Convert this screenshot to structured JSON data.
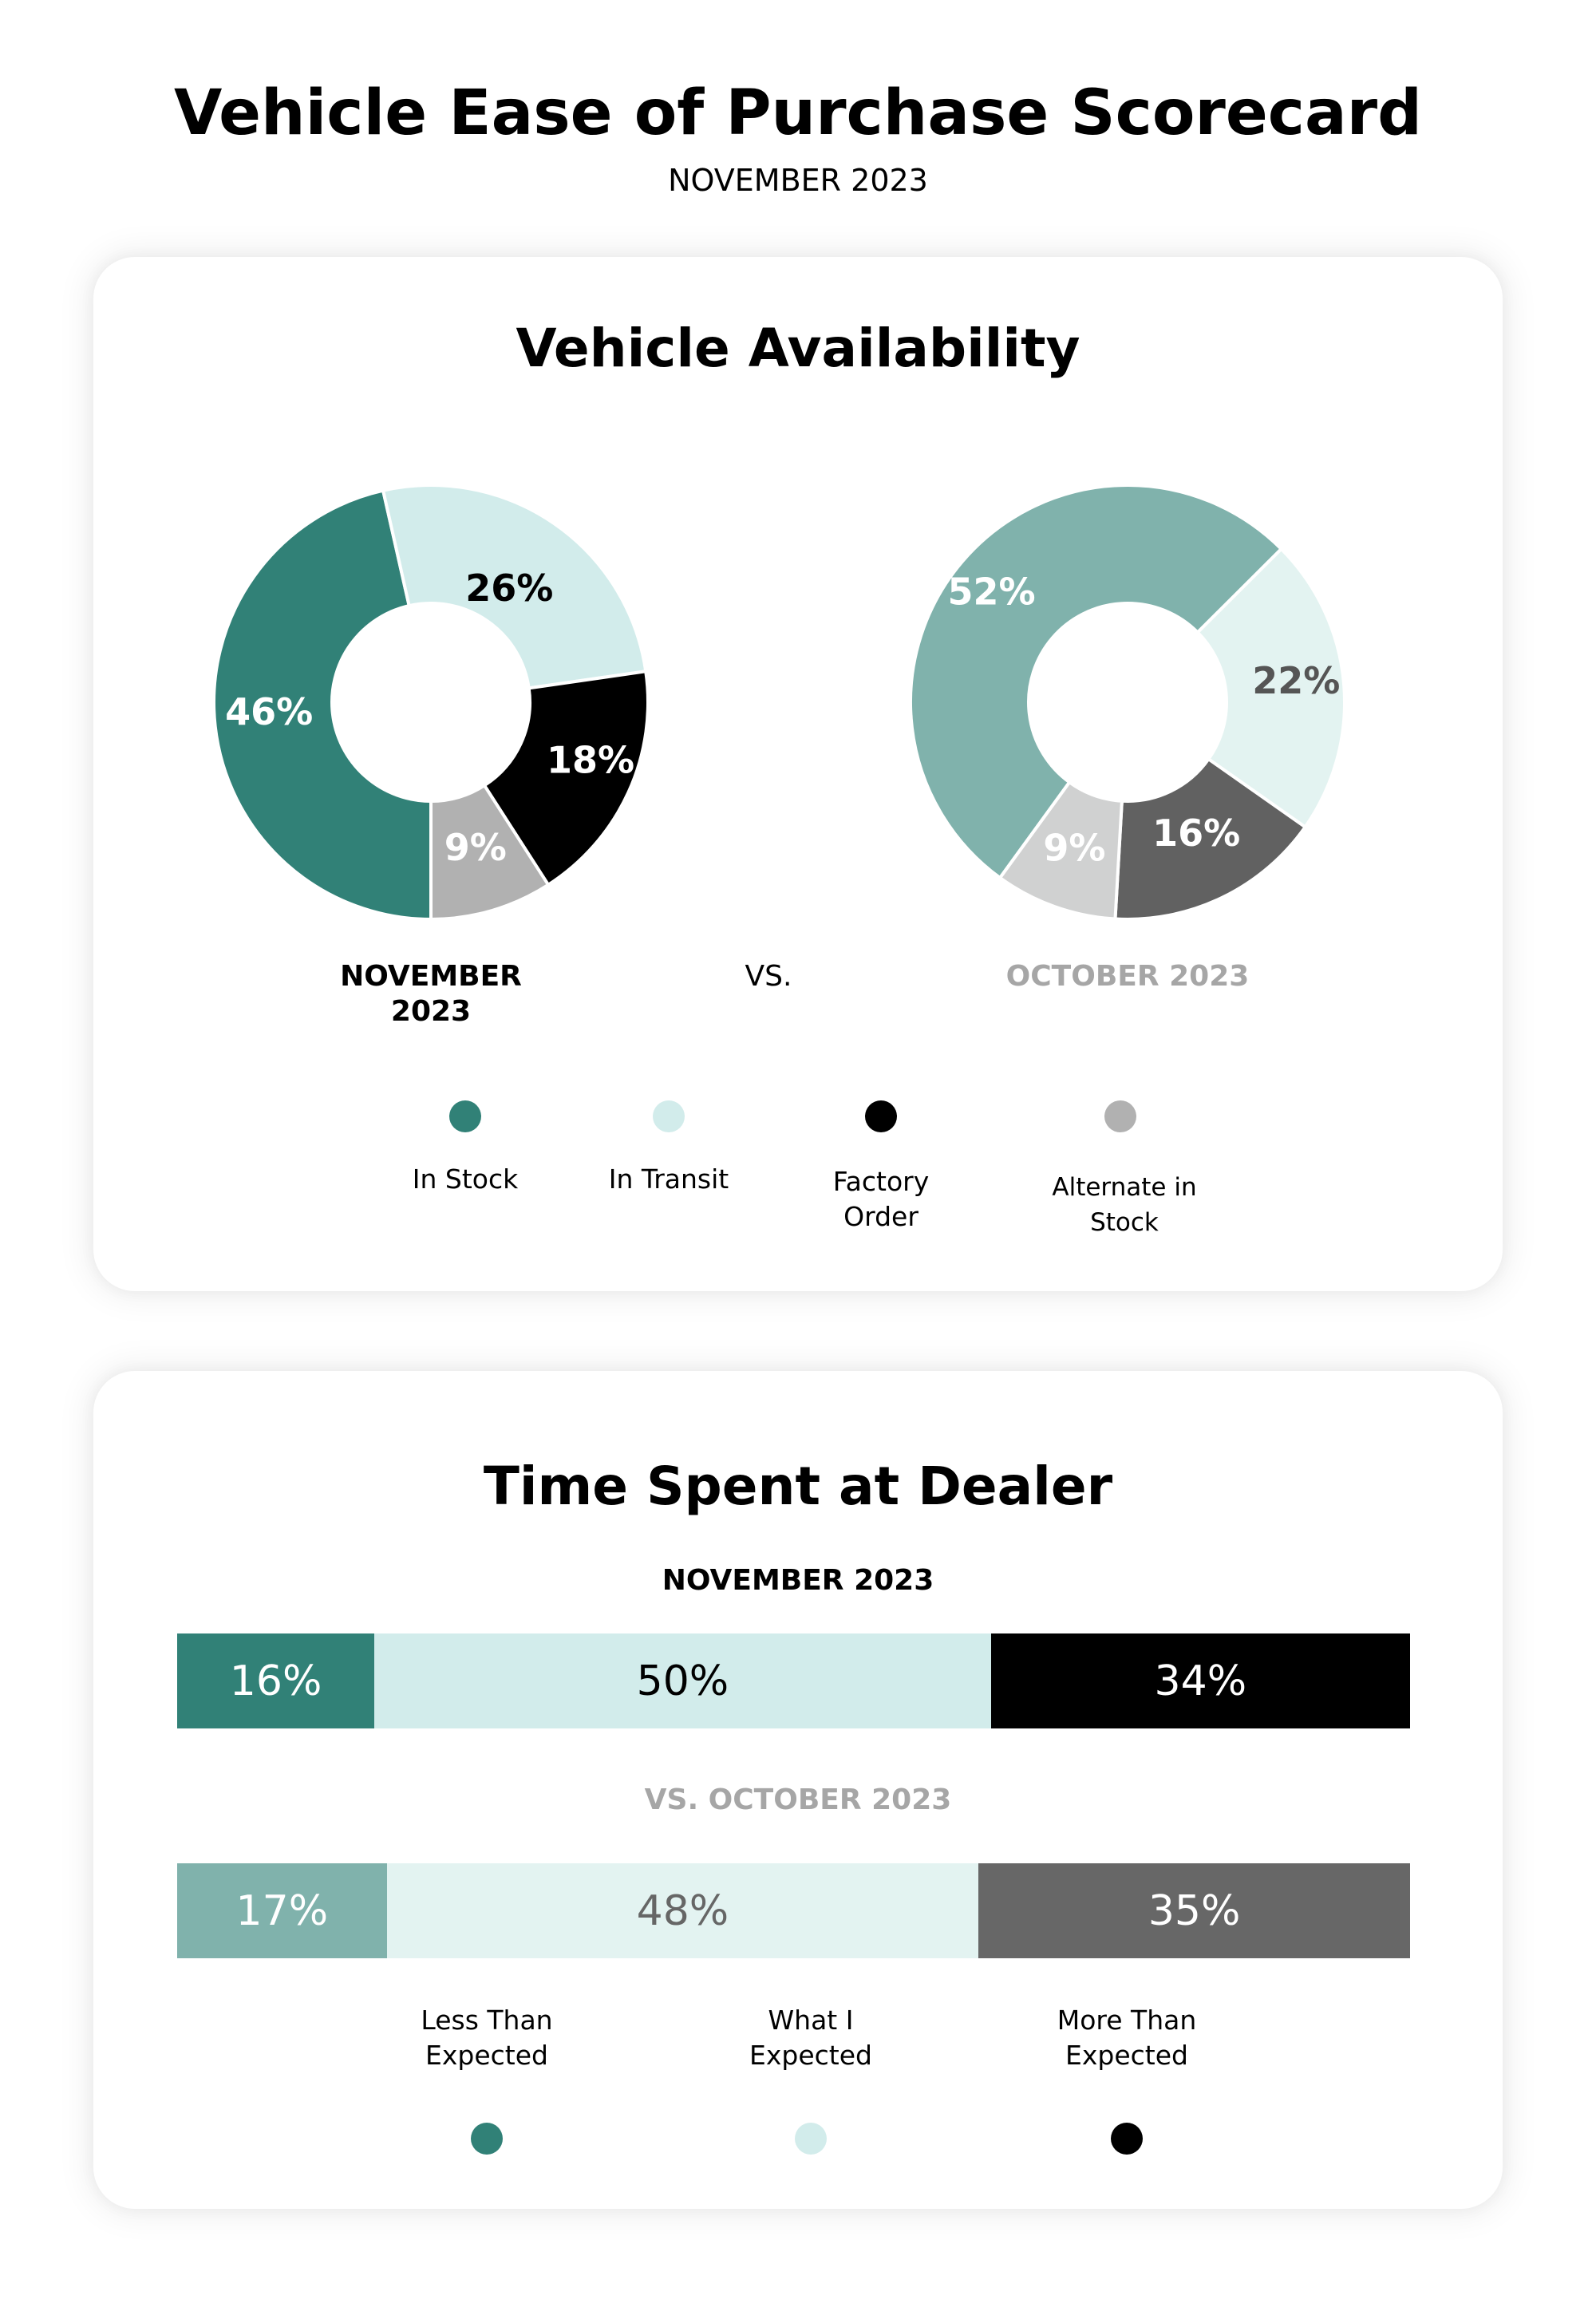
{
  "header": {
    "title": "Vehicle Ease of Purchase Scorecard",
    "subtitle": "NOVEMBER 2023"
  },
  "availability": {
    "title": "Vehicle Availability",
    "current_label": "NOVEMBER 2023",
    "vs_label": "VS.",
    "previous_label": "OCTOBER 2023",
    "legend": [
      {
        "label_line1": "In Stock",
        "label_line2": "",
        "color": "#318177"
      },
      {
        "label_line1": "In Transit",
        "label_line2": "",
        "color": "#D2ECEB"
      },
      {
        "label_line1": "Factory",
        "label_line2": "Order",
        "color": "#000000"
      },
      {
        "label_line1": "Alternate in",
        "label_line2": "Stock",
        "color": "#B1B1B1"
      }
    ]
  },
  "time_at_dealer": {
    "title": "Time Spent at Dealer",
    "current_label": "NOVEMBER 2023",
    "previous_label": "VS. OCTOBER 2023",
    "legend": [
      {
        "label_line1": "Less Than",
        "label_line2": "Expected",
        "color": "#318177"
      },
      {
        "label_line1": "What I",
        "label_line2": "Expected",
        "color": "#D2ECEB"
      },
      {
        "label_line1": "More Than",
        "label_line2": "Expected",
        "color": "#000000"
      }
    ]
  },
  "chart_data": [
    {
      "type": "pie",
      "title": "Vehicle Availability — NOVEMBER 2023",
      "donut": true,
      "categories": [
        "In Stock",
        "In Transit",
        "Factory Order",
        "Alternate in Stock"
      ],
      "values": [
        46,
        26,
        18,
        9
      ],
      "labels": [
        "46%",
        "26%",
        "18%",
        "9%"
      ],
      "colors": [
        "#318177",
        "#D2ECEB",
        "#000000",
        "#B1B1B1"
      ],
      "label_colors": [
        "#FFFFFF",
        "#000000",
        "#FFFFFF",
        "#FFFFFF"
      ],
      "start_angle_deg": 180
    },
    {
      "type": "pie",
      "title": "Vehicle Availability — OCTOBER 2023",
      "donut": true,
      "categories": [
        "In Stock",
        "In Transit",
        "Factory Order",
        "Alternate in Stock"
      ],
      "values": [
        52,
        22,
        16,
        9
      ],
      "labels": [
        "52%",
        "22%",
        "16%",
        "9%"
      ],
      "colors": [
        "#80B2AC",
        "#E3F3F1",
        "#616161",
        "#D0D1D1"
      ],
      "label_colors": [
        "#FFFFFF",
        "#555555",
        "#FFFFFF",
        "#FFFFFF"
      ],
      "start_angle_deg": 216
    },
    {
      "type": "bar",
      "orientation": "horizontal-stacked",
      "title": "Time Spent at Dealer",
      "categories": [
        "NOVEMBER 2023",
        "VS. OCTOBER 2023"
      ],
      "series": [
        {
          "name": "Less Than Expected",
          "values": [
            16,
            17
          ],
          "colors": [
            "#318177",
            "#80B2AC"
          ],
          "label_colors": [
            "#FFFFFF",
            "#FFFFFF"
          ]
        },
        {
          "name": "What I Expected",
          "values": [
            50,
            48
          ],
          "colors": [
            "#D2ECEB",
            "#E3F3F1"
          ],
          "label_colors": [
            "#000000",
            "#666666"
          ]
        },
        {
          "name": "More Than Expected",
          "values": [
            34,
            35
          ],
          "colors": [
            "#000000",
            "#676767"
          ],
          "label_colors": [
            "#FFFFFF",
            "#FFFFFF"
          ]
        }
      ],
      "labels": [
        [
          "16%",
          "50%",
          "34%"
        ],
        [
          "17%",
          "48%",
          "35%"
        ]
      ],
      "xlim": [
        0,
        100
      ]
    }
  ]
}
